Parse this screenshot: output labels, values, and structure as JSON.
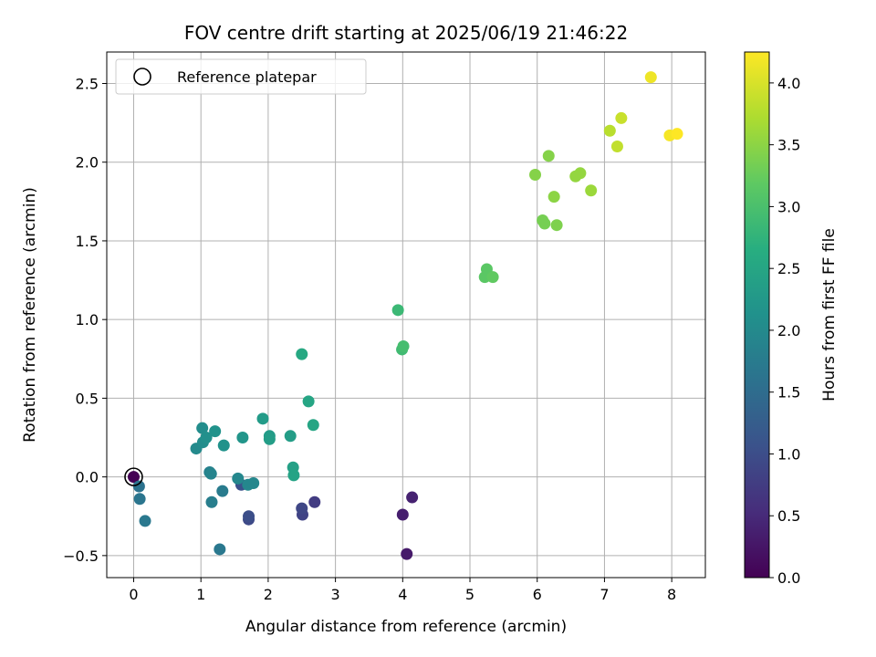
{
  "chart_data": {
    "type": "scatter",
    "title": "FOV centre drift starting at 2025/06/19 21:46:22",
    "xlabel": "Angular distance from reference (arcmin)",
    "ylabel": "Rotation from reference (arcmin)",
    "xlim": [
      -0.4,
      8.5
    ],
    "ylim": [
      -0.64,
      2.7
    ],
    "xticks": [
      0,
      1,
      2,
      3,
      4,
      5,
      6,
      7,
      8
    ],
    "xtick_labels": [
      "0",
      "1",
      "2",
      "3",
      "4",
      "5",
      "6",
      "7",
      "8"
    ],
    "yticks": [
      -0.5,
      0.0,
      0.5,
      1.0,
      1.5,
      2.0,
      2.5
    ],
    "ytick_labels": [
      "−0.5",
      "0.0",
      "0.5",
      "1.0",
      "1.5",
      "2.0",
      "2.5"
    ],
    "grid": true,
    "colormap": "viridis",
    "colorbar": {
      "label": "Hours from first FF file",
      "range": [
        0.0,
        4.25
      ],
      "ticks": [
        0.0,
        0.5,
        1.0,
        1.5,
        2.0,
        2.5,
        3.0,
        3.5,
        4.0
      ],
      "tick_labels": [
        "0.0",
        "0.5",
        "1.0",
        "1.5",
        "2.0",
        "2.5",
        "3.0",
        "3.5",
        "4.0"
      ]
    },
    "legend": {
      "position": "top-left",
      "entries": [
        {
          "label": "Reference platepar",
          "marker": "open-circle",
          "color": "#000000"
        }
      ]
    },
    "reference_point": {
      "x": 0.0,
      "y": 0.0
    },
    "points": [
      {
        "x": 0.0,
        "y": 0.0,
        "hours": 0.0
      },
      {
        "x": 4.06,
        "y": -0.49,
        "hours": 0.3
      },
      {
        "x": 4.0,
        "y": -0.24,
        "hours": 0.35
      },
      {
        "x": 4.14,
        "y": -0.13,
        "hours": 0.4
      },
      {
        "x": 2.69,
        "y": -0.16,
        "hours": 0.75
      },
      {
        "x": 2.51,
        "y": -0.24,
        "hours": 0.85
      },
      {
        "x": 2.5,
        "y": -0.2,
        "hours": 0.9
      },
      {
        "x": 1.71,
        "y": -0.27,
        "hours": 0.95
      },
      {
        "x": 1.71,
        "y": -0.25,
        "hours": 1.0
      },
      {
        "x": 1.6,
        "y": -0.05,
        "hours": 1.05
      },
      {
        "x": 1.28,
        "y": -0.46,
        "hours": 1.7
      },
      {
        "x": 1.32,
        "y": -0.09,
        "hours": 1.75
      },
      {
        "x": 1.16,
        "y": -0.16,
        "hours": 1.8
      },
      {
        "x": 1.13,
        "y": 0.03,
        "hours": 1.85
      },
      {
        "x": 1.15,
        "y": 0.02,
        "hours": 1.9
      },
      {
        "x": 1.55,
        "y": -0.01,
        "hours": 1.95
      },
      {
        "x": 1.7,
        "y": -0.05,
        "hours": 1.95
      },
      {
        "x": 1.78,
        "y": -0.04,
        "hours": 1.95
      },
      {
        "x": 0.08,
        "y": -0.06,
        "hours": 1.6
      },
      {
        "x": 0.09,
        "y": -0.14,
        "hours": 1.65
      },
      {
        "x": 0.17,
        "y": -0.28,
        "hours": 1.7
      },
      {
        "x": 0.93,
        "y": 0.18,
        "hours": 2.0
      },
      {
        "x": 1.02,
        "y": 0.31,
        "hours": 2.05
      },
      {
        "x": 1.03,
        "y": 0.22,
        "hours": 2.05
      },
      {
        "x": 1.08,
        "y": 0.25,
        "hours": 2.1
      },
      {
        "x": 1.21,
        "y": 0.29,
        "hours": 2.15
      },
      {
        "x": 1.34,
        "y": 0.2,
        "hours": 2.15
      },
      {
        "x": 1.62,
        "y": 0.25,
        "hours": 2.2
      },
      {
        "x": 1.92,
        "y": 0.37,
        "hours": 2.3
      },
      {
        "x": 2.02,
        "y": 0.26,
        "hours": 2.3
      },
      {
        "x": 2.02,
        "y": 0.24,
        "hours": 2.35
      },
      {
        "x": 2.33,
        "y": 0.26,
        "hours": 2.35
      },
      {
        "x": 2.37,
        "y": 0.06,
        "hours": 2.4
      },
      {
        "x": 2.38,
        "y": 0.01,
        "hours": 2.45
      },
      {
        "x": 2.67,
        "y": 0.33,
        "hours": 2.5
      },
      {
        "x": 2.6,
        "y": 0.48,
        "hours": 2.5
      },
      {
        "x": 2.5,
        "y": 0.78,
        "hours": 2.55
      },
      {
        "x": 3.93,
        "y": 1.06,
        "hours": 2.85
      },
      {
        "x": 3.99,
        "y": 0.81,
        "hours": 2.9
      },
      {
        "x": 4.01,
        "y": 0.83,
        "hours": 2.95
      },
      {
        "x": 5.22,
        "y": 1.27,
        "hours": 3.15
      },
      {
        "x": 5.25,
        "y": 1.32,
        "hours": 3.15
      },
      {
        "x": 5.34,
        "y": 1.27,
        "hours": 3.2
      },
      {
        "x": 6.08,
        "y": 1.63,
        "hours": 3.35
      },
      {
        "x": 6.11,
        "y": 1.61,
        "hours": 3.35
      },
      {
        "x": 6.29,
        "y": 1.6,
        "hours": 3.4
      },
      {
        "x": 5.97,
        "y": 1.92,
        "hours": 3.45
      },
      {
        "x": 6.17,
        "y": 2.04,
        "hours": 3.45
      },
      {
        "x": 6.25,
        "y": 1.78,
        "hours": 3.5
      },
      {
        "x": 6.57,
        "y": 1.91,
        "hours": 3.55
      },
      {
        "x": 6.64,
        "y": 1.93,
        "hours": 3.55
      },
      {
        "x": 6.8,
        "y": 1.82,
        "hours": 3.6
      },
      {
        "x": 7.08,
        "y": 2.2,
        "hours": 3.8
      },
      {
        "x": 7.19,
        "y": 2.1,
        "hours": 3.85
      },
      {
        "x": 7.25,
        "y": 2.28,
        "hours": 3.9
      },
      {
        "x": 7.69,
        "y": 2.54,
        "hours": 4.15
      },
      {
        "x": 7.97,
        "y": 2.17,
        "hours": 4.2
      },
      {
        "x": 8.08,
        "y": 2.18,
        "hours": 4.25
      }
    ]
  }
}
